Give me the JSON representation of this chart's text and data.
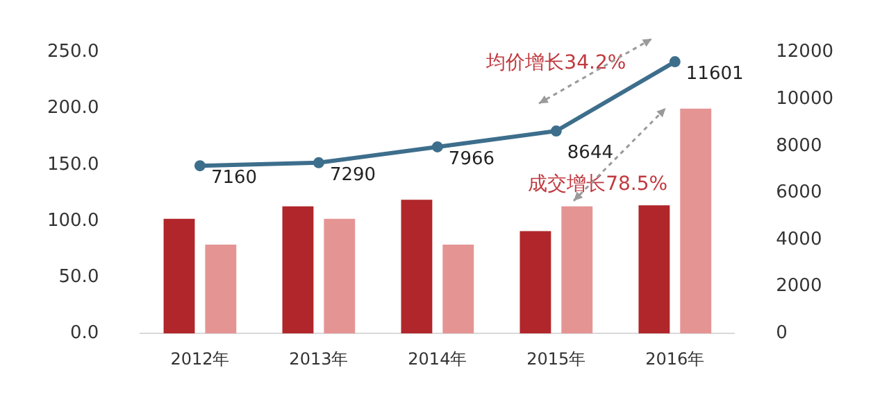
{
  "chart_data": {
    "type": "bar",
    "categories": [
      "2012年",
      "2013年",
      "2014年",
      "2015年",
      "2016年"
    ],
    "series": [
      {
        "name": null,
        "color": "#b0262a",
        "values": [
          102,
          113,
          119,
          91,
          114
        ]
      },
      {
        "name": null,
        "color": "#e59494",
        "values": [
          79,
          102,
          79,
          113,
          200
        ]
      },
      {
        "type": "line",
        "axis": "y2",
        "color": "#3d6e8c",
        "values": [
          7160,
          7290,
          7966,
          8644,
          11601
        ],
        "value_labels": [
          "7160",
          "7290",
          "7966",
          "8644",
          "11601"
        ]
      }
    ],
    "ylim": [
      0,
      250
    ],
    "yticks": [
      {
        "value": 0,
        "label": "0.0"
      },
      {
        "value": 50,
        "label": "50.0"
      },
      {
        "value": 100,
        "label": "100.0"
      },
      {
        "value": 150,
        "label": "150.0"
      },
      {
        "value": 200,
        "label": "200.0"
      },
      {
        "value": 250,
        "label": "250.0"
      }
    ],
    "y2lim": [
      0,
      12000
    ],
    "y2ticks": [
      0,
      2000,
      4000,
      6000,
      8000,
      10000,
      12000
    ],
    "annotations": [
      "均价增长34.2%",
      "成交增长78.5%"
    ],
    "grid": false,
    "legend": false,
    "marker": "circle"
  }
}
